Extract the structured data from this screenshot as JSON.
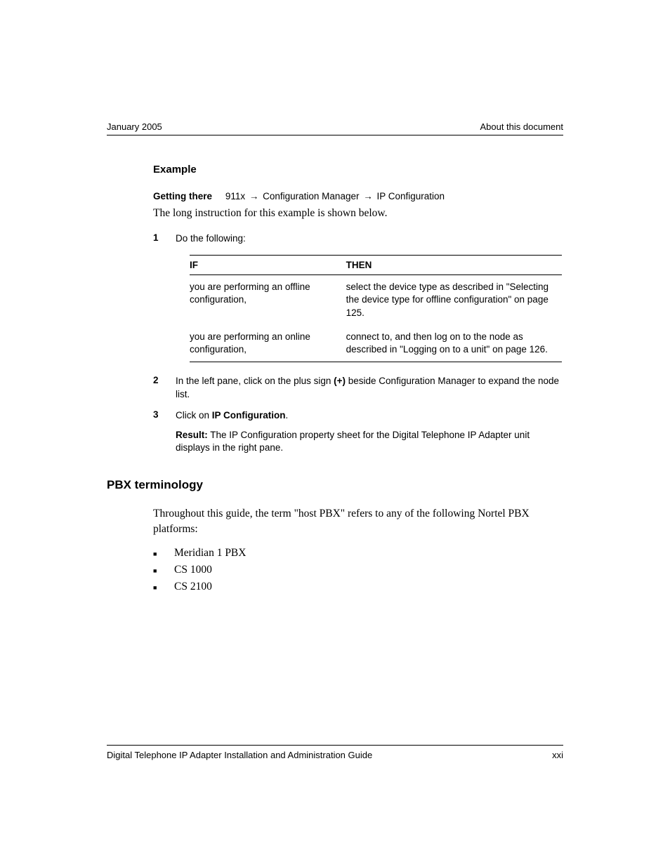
{
  "header": {
    "left": "January 2005",
    "right": "About this document"
  },
  "example": {
    "heading": "Example",
    "getting_there_label": "Getting there",
    "breadcrumb": [
      "911x",
      "Configuration Manager",
      "IP Configuration"
    ],
    "arrow": "→",
    "long_instruction": "The long instruction for this example is shown below."
  },
  "steps": [
    {
      "num": "1",
      "text": "Do the following:"
    },
    {
      "num": "2",
      "parts": [
        {
          "t": "In the left pane, click on the plus sign "
        },
        {
          "t": "(+)",
          "bold": true
        },
        {
          "t": " beside Configuration Manager to expand the node list."
        }
      ]
    },
    {
      "num": "3",
      "parts": [
        {
          "t": "Click on "
        },
        {
          "t": "IP Configuration",
          "bold": true
        },
        {
          "t": "."
        }
      ],
      "result_label": "Result:",
      "result_text": " The IP Configuration property sheet for the Digital Telephone IP Adapter unit displays in the right pane."
    }
  ],
  "if_then": {
    "head_if": "IF",
    "head_then": "THEN",
    "rows": [
      {
        "if": "you are performing an offline configuration,",
        "then": "select the device type as described in \"Selecting the device type for offline configuration\" on page 125."
      },
      {
        "if": "you are performing an online configuration,",
        "then": "connect to, and then log on to the node as described in \"Logging on to a unit\" on page 126."
      }
    ]
  },
  "pbx": {
    "heading": "PBX terminology",
    "intro": "Throughout this guide, the term \"host PBX\" refers to any of the following Nortel PBX platforms:",
    "items": [
      "Meridian 1 PBX",
      "CS 1000",
      "CS 2100"
    ]
  },
  "footer": {
    "left": "Digital Telephone IP Adapter Installation and Administration Guide",
    "right": "xxi"
  }
}
